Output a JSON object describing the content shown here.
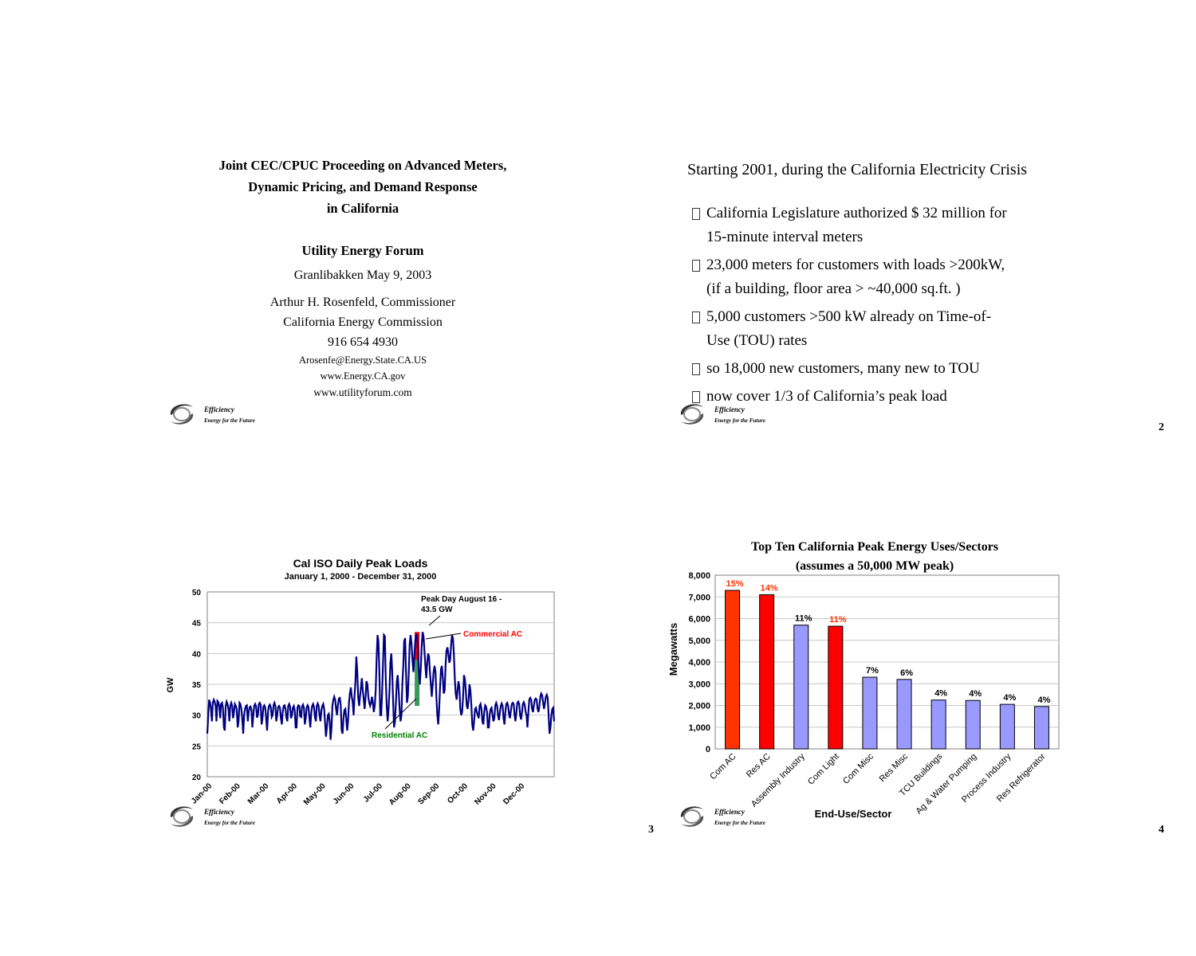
{
  "logo": {
    "line1": "Efficiency",
    "line2": "Energy for the Future"
  },
  "slide1": {
    "title_lines": [
      "Joint CEC/CPUC Proceeding on Advanced Meters,",
      "Dynamic Pricing, and Demand Response",
      "in California"
    ],
    "forum": "Utility Energy Forum",
    "venue": "Granlibakken May 9, 2003",
    "presenter": "Arthur H. Rosenfeld, Commissioner",
    "organization": "California Energy Commission",
    "phone": "916 654 4930",
    "email": "Arosenfe@Energy.State.CA.US",
    "web1": "www.Energy.CA.gov",
    "web2": "www.utilityforum.com"
  },
  "slide2": {
    "title": "Starting 2001, during the California Electricity Crisis",
    "bullets": [
      [
        "California Legislature authorized $ 32 million for",
        "15-minute interval meters"
      ],
      [
        "23,000 meters for customers with loads >200kW,",
        "(if a building, floor area > ~40,000 sq.ft. )"
      ],
      [
        " 5,000 customers >500 kW already on Time-of-",
        "Use (TOU) rates"
      ],
      [
        " so 18,000 new customers, many new to TOU"
      ],
      [
        "now cover 1/3 of California’s peak load"
      ]
    ],
    "page": "2"
  },
  "slide3": {
    "page": "3"
  },
  "slide4": {
    "page": "4"
  },
  "chart_data": [
    {
      "type": "line",
      "title": "Cal ISO Daily Peak Loads",
      "subtitle": "January 1, 2000 - December 31, 2000",
      "ylabel": "GW",
      "ylim": [
        20,
        50
      ],
      "yticks": [
        20,
        25,
        30,
        35,
        40,
        45,
        50
      ],
      "xlabels": [
        "Jan-00",
        "Feb-00",
        "Mar-00",
        "Apr-00",
        "May-00",
        "Jun-00",
        "Jul-00",
        "Aug-00",
        "Sep-00",
        "Oct-00",
        "Nov-00",
        "Dec-00"
      ],
      "grid": true,
      "series": [
        {
          "color": "#000080",
          "values": [
            27,
            30,
            32.5,
            32,
            31,
            29,
            32,
            32.5,
            32.2,
            31.5,
            29,
            32.3,
            32.1,
            31.5,
            29.5,
            31.8,
            32,
            31.2,
            28,
            27.5,
            31.5,
            32.2,
            31.8,
            31,
            29,
            31.5,
            32,
            31.5,
            29.5,
            30.5,
            31.8,
            31.5,
            31,
            28,
            29,
            32,
            31.8,
            31,
            29.5,
            27,
            30,
            31,
            31.5,
            31.6,
            29,
            30.5,
            31.3,
            31.4,
            30.8,
            28,
            30,
            31.5,
            31.8,
            31.4,
            29.6,
            30,
            31.8,
            32,
            31.7,
            28.5,
            29.5,
            31.4,
            31.6,
            31.2,
            29.5,
            27.5,
            30.5,
            31.5,
            31.7,
            31.3,
            29.7,
            30,
            31.6,
            32,
            31.5,
            29,
            30,
            31.3,
            31.5,
            31.2,
            29.5,
            28.5,
            30.5,
            31.5,
            31.6,
            31,
            29.6,
            29,
            31.5,
            31.8,
            31.4,
            29.5,
            30,
            31.2,
            31.5,
            30.8,
            28,
            28,
            31.2,
            31.6,
            31.5,
            29.8,
            29.7,
            31.4,
            31.7,
            31.2,
            28.5,
            29.5,
            31.2,
            31.6,
            31.3,
            29.5,
            28,
            30.5,
            31.5,
            31.8,
            31.3,
            29.7,
            29,
            31.5,
            31.9,
            31.5,
            30,
            29,
            30.8,
            31.5,
            31.8,
            31,
            28.8,
            26.5,
            28,
            30,
            30.2,
            29,
            26,
            28,
            31.5,
            32.5,
            33,
            32.5,
            31,
            30,
            31.6,
            32.7,
            32.8,
            31.7,
            27.5,
            27,
            29.5,
            30.8,
            31,
            29.5,
            27.5,
            29,
            32,
            33.5,
            34.5,
            33,
            32.2,
            30,
            33,
            35.5,
            39.5,
            37,
            33,
            31.5,
            33,
            34.5,
            36,
            34,
            32.5,
            31,
            33,
            35.5,
            35,
            33,
            32,
            31.5,
            32,
            33,
            32,
            30.5,
            31.5,
            34,
            39,
            43,
            42,
            37,
            30,
            30,
            33.5,
            38.5,
            43,
            42.8,
            36,
            31.5,
            29,
            31,
            34,
            38.5,
            40,
            37,
            32,
            28,
            29,
            32,
            35.5,
            36.5,
            34,
            31,
            29,
            30,
            35,
            38,
            42,
            42.5,
            37,
            32,
            33,
            37,
            41.5,
            43,
            41.5,
            39,
            37,
            39.5,
            42,
            43.2,
            42.8,
            40.5,
            37,
            35,
            37.5,
            41,
            43.5,
            42.8,
            40.5,
            38,
            36,
            38.5,
            40,
            39.5,
            37,
            35,
            33,
            35,
            37,
            38,
            37,
            33,
            30,
            28.5,
            31,
            34.5,
            37.5,
            38,
            36,
            33.5,
            34,
            38,
            40.5,
            41,
            40,
            38.5,
            39,
            41.5,
            43,
            42.5,
            40,
            36,
            33.5,
            32.5,
            34,
            35.5,
            34.5,
            31,
            30,
            30.5,
            33,
            36.5,
            35.8,
            34,
            31.5,
            31,
            32.5,
            35,
            34,
            31.5,
            28.5,
            27.5,
            29,
            31,
            31.2,
            30.5,
            30,
            29.5,
            31.5,
            31.8,
            31,
            29,
            28.5,
            30.5,
            31.6,
            31.4,
            30.5,
            28,
            28,
            30.2,
            31,
            31.2,
            30,
            29,
            29.5,
            31.6,
            32,
            31.5,
            30,
            29.2,
            30.4,
            31.5,
            31.9,
            31.5,
            29.5,
            28.5,
            30.5,
            31.8,
            32,
            31.5,
            30,
            29.5,
            30.8,
            31.8,
            32,
            31.8,
            30,
            29,
            30.5,
            32,
            32.2,
            31.8,
            30,
            29.3,
            30.4,
            31.8,
            32.1,
            31.7,
            30.5,
            30,
            28,
            30.5,
            32.5,
            32.8,
            32.5,
            31,
            30.5,
            31.6,
            32.5,
            32.7,
            32.5,
            31,
            30.5,
            31.5,
            33,
            33.5,
            33.2,
            32,
            31,
            32,
            33,
            33.3,
            32.8,
            30,
            27,
            28,
            30,
            31,
            31.2,
            29
          ]
        }
      ],
      "annotations": [
        {
          "text": "Peak Day August 16 -",
          "text2": "43.5 GW"
        },
        {
          "text": "Commercial AC",
          "color": "#FF0000"
        },
        {
          "text": "Residential AC",
          "color": "#008000"
        }
      ],
      "stacked_bar": {
        "x_day": 228,
        "residential": [
          31.5,
          39
        ],
        "commercial": [
          39,
          43.5
        ],
        "residential_color": "#3a9a5a",
        "commercial_color": "#FF0000"
      }
    },
    {
      "type": "bar",
      "title": "Top Ten California Peak Energy Uses/Sectors",
      "subtitle": "(assumes a 50,000 MW peak)",
      "xlabel": "End-Use/Sector",
      "ylabel": "Megawatts",
      "ylim": [
        0,
        8000
      ],
      "yticks": [
        "0",
        "1,000",
        "2,000",
        "3,000",
        "4,000",
        "5,000",
        "6,000",
        "7,000",
        "8,000"
      ],
      "categories": [
        "Com AC",
        "Res AC",
        "Assembly Industry",
        "Com Light",
        "Com Misc",
        "Res Misc",
        "TCU Buildings",
        "Ag & Water Pumping",
        "Process Industry",
        "Res Refrigerator"
      ],
      "values": [
        7300,
        7100,
        5700,
        5650,
        3300,
        3200,
        2250,
        2230,
        2050,
        1950
      ],
      "labels": [
        "15%",
        "14%",
        "11%",
        "11%",
        "7%",
        "6%",
        "4%",
        "4%",
        "4%",
        "4%"
      ],
      "bar_colors": [
        "#FF3300",
        "#FF0000",
        "#9999FF",
        "#FF0000",
        "#9999FF",
        "#9999FF",
        "#9999FF",
        "#9999FF",
        "#9999FF",
        "#9999FF"
      ],
      "label_colors": [
        "#FF3300",
        "#FF3300",
        "#000000",
        "#FF3300",
        "#000000",
        "#000000",
        "#000000",
        "#000000",
        "#000000",
        "#000000"
      ],
      "grid": true
    }
  ]
}
